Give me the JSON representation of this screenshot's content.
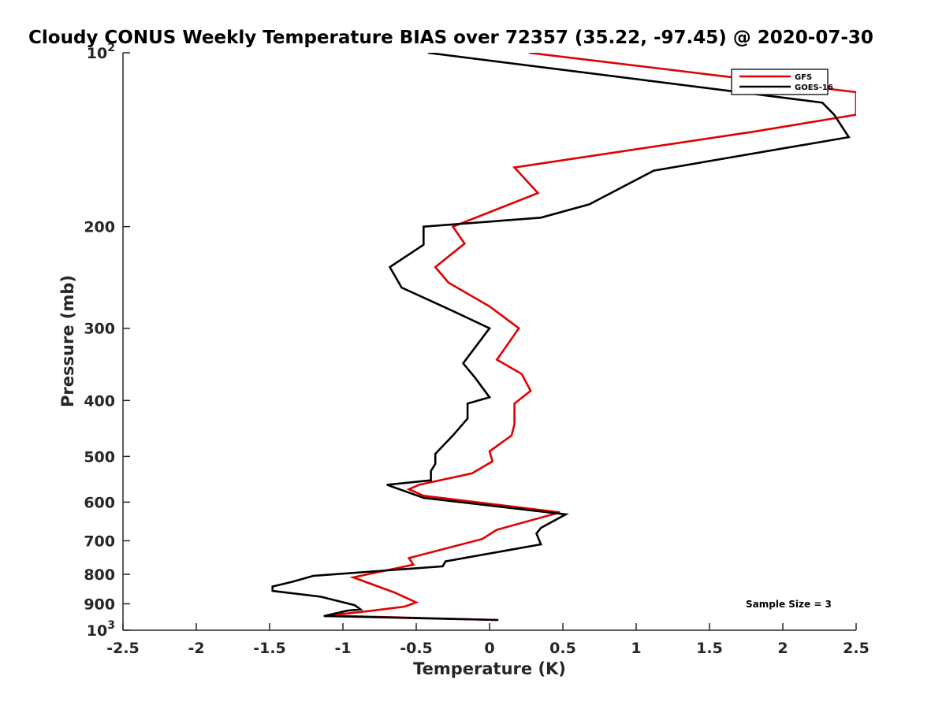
{
  "chart_data": {
    "type": "line",
    "title": "Cloudy CONUS Weekly Temperature BIAS over 72357 (35.22, -97.45) @ 2020-07-30",
    "xlabel": "Temperature (K)",
    "ylabel": "Pressure (mb)",
    "xlim": [
      -2.5,
      2.5
    ],
    "ylim": [
      100,
      1000
    ],
    "yscale": "log",
    "y_reversed": true,
    "x_ticks": [
      "-2.5",
      "-2",
      "-1.5",
      "-1",
      "-0.5",
      "0",
      "0.5",
      "1",
      "1.5",
      "2",
      "2.5"
    ],
    "y_ticks": [
      {
        "value": 100,
        "base": "10",
        "exp": "2"
      },
      {
        "value": 200,
        "label": "200"
      },
      {
        "value": 300,
        "label": "300"
      },
      {
        "value": 400,
        "label": "400"
      },
      {
        "value": 500,
        "label": "500"
      },
      {
        "value": 600,
        "label": "600"
      },
      {
        "value": 700,
        "label": "700"
      },
      {
        "value": 800,
        "label": "800"
      },
      {
        "value": 900,
        "label": "900"
      },
      {
        "value": 1000,
        "base": "10",
        "exp": "3"
      }
    ],
    "grid": false,
    "legend_position": "top-right",
    "annotation": "Sample Size = 3",
    "series": [
      {
        "name": "GFS",
        "color": "#e00000",
        "points": [
          [
            0.27,
            100
          ],
          [
            2.5,
            117
          ],
          [
            2.5,
            128
          ],
          [
            1.8,
            137
          ],
          [
            0.17,
            158
          ],
          [
            0.33,
            175
          ],
          [
            -0.25,
            200
          ],
          [
            -0.17,
            214
          ],
          [
            -0.37,
            235
          ],
          [
            -0.28,
            250
          ],
          [
            0.0,
            275
          ],
          [
            0.2,
            300
          ],
          [
            0.05,
            340
          ],
          [
            0.22,
            360
          ],
          [
            0.28,
            385
          ],
          [
            0.17,
            405
          ],
          [
            0.17,
            440
          ],
          [
            0.15,
            460
          ],
          [
            0.0,
            490
          ],
          [
            0.02,
            510
          ],
          [
            -0.12,
            535
          ],
          [
            -0.48,
            560
          ],
          [
            -0.55,
            570
          ],
          [
            -0.45,
            585
          ],
          [
            0.48,
            625
          ],
          [
            0.05,
            670
          ],
          [
            -0.05,
            695
          ],
          [
            -0.55,
            750
          ],
          [
            -0.52,
            770
          ],
          [
            -0.93,
            810
          ],
          [
            -0.65,
            860
          ],
          [
            -0.5,
            895
          ],
          [
            -0.58,
            910
          ],
          [
            -0.8,
            925
          ],
          [
            -1.13,
            945
          ],
          [
            -0.98,
            945
          ],
          [
            0.05,
            960
          ]
        ]
      },
      {
        "name": "GOES-16",
        "color": "#000000",
        "points": [
          [
            -0.42,
            100
          ],
          [
            2.27,
            122
          ],
          [
            2.35,
            128
          ],
          [
            2.45,
            140
          ],
          [
            1.12,
            160
          ],
          [
            0.68,
            183
          ],
          [
            0.35,
            193
          ],
          [
            -0.45,
            200
          ],
          [
            -0.45,
            215
          ],
          [
            -0.68,
            235
          ],
          [
            -0.6,
            255
          ],
          [
            -0.25,
            280
          ],
          [
            0.0,
            300
          ],
          [
            -0.18,
            345
          ],
          [
            -0.1,
            365
          ],
          [
            0.0,
            395
          ],
          [
            -0.15,
            405
          ],
          [
            -0.15,
            430
          ],
          [
            -0.25,
            460
          ],
          [
            -0.37,
            495
          ],
          [
            -0.37,
            515
          ],
          [
            -0.4,
            530
          ],
          [
            -0.4,
            550
          ],
          [
            -0.7,
            560
          ],
          [
            -0.45,
            590
          ],
          [
            0.52,
            630
          ],
          [
            0.35,
            665
          ],
          [
            0.32,
            680
          ],
          [
            0.35,
            710
          ],
          [
            -0.3,
            760
          ],
          [
            -0.32,
            775
          ],
          [
            -1.2,
            805
          ],
          [
            -1.35,
            825
          ],
          [
            -1.48,
            840
          ],
          [
            -1.48,
            855
          ],
          [
            -1.15,
            875
          ],
          [
            -0.92,
            905
          ],
          [
            -0.88,
            920
          ],
          [
            -0.97,
            925
          ],
          [
            -1.13,
            945
          ],
          [
            0.06,
            960
          ]
        ]
      }
    ]
  }
}
